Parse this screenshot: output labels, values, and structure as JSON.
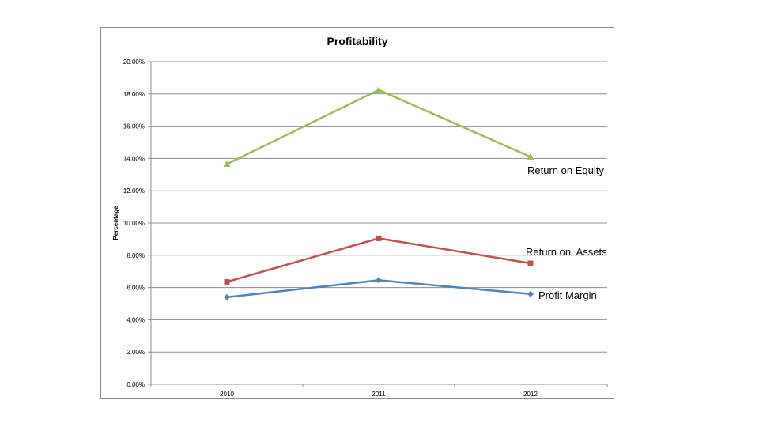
{
  "chart_data": {
    "type": "line",
    "title": "Profitability",
    "xlabel": "",
    "ylabel": "Percentage",
    "categories": [
      "2010",
      "2011",
      "2012"
    ],
    "ylim": [
      0,
      20
    ],
    "yticks": [
      0,
      2,
      4,
      6,
      8,
      10,
      12,
      14,
      16,
      18,
      20
    ],
    "ytick_labels": [
      "0.00%",
      "2.00%",
      "4.00%",
      "6.00%",
      "8.00%",
      "10.00%",
      "12.00%",
      "14.00%",
      "16.00%",
      "18.00%",
      "20.00%"
    ],
    "grid": true,
    "legend": "none",
    "series": [
      {
        "name": "Return on Equity",
        "values": [
          13.65,
          18.25,
          14.1
        ],
        "color": "#9bbb59",
        "marker": "triangle"
      },
      {
        "name": "Return on  Assets",
        "values": [
          6.35,
          9.05,
          7.5
        ],
        "color": "#c0504d",
        "marker": "square"
      },
      {
        "name": "Profit Margin",
        "values": [
          5.4,
          6.45,
          5.6
        ],
        "color": "#4f81bd",
        "marker": "diamond"
      }
    ]
  }
}
